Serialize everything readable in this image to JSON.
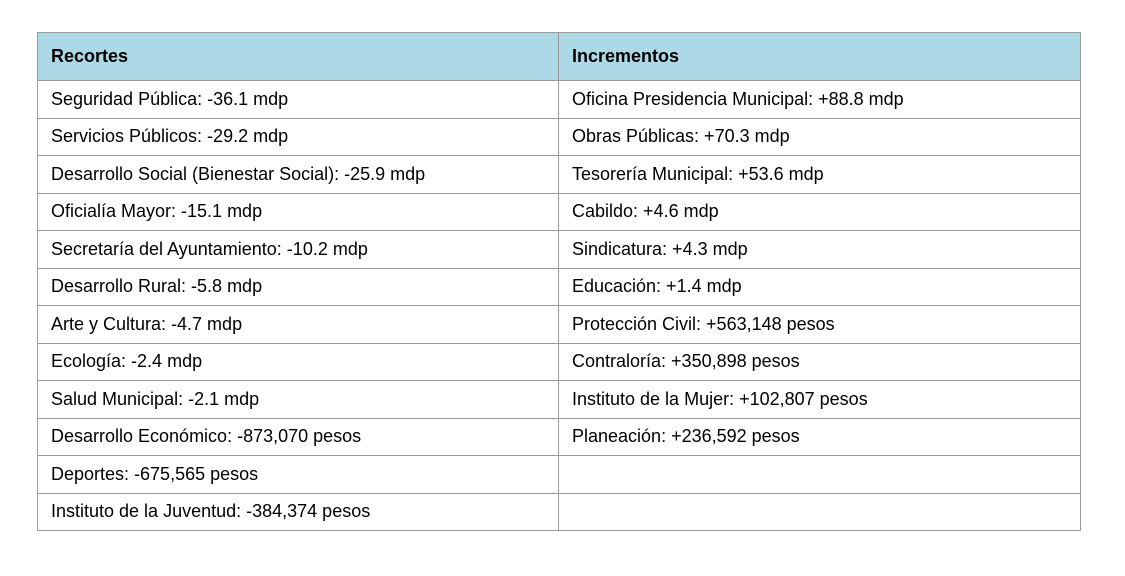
{
  "table": {
    "headers": [
      "Recortes",
      "Incrementos"
    ],
    "rows": [
      [
        "Seguridad Pública: -36.1 mdp",
        "Oficina Presidencia Municipal: +88.8 mdp"
      ],
      [
        "Servicios Públicos: -29.2 mdp",
        "Obras Públicas: +70.3 mdp"
      ],
      [
        "Desarrollo Social (Bienestar Social): -25.9 mdp",
        "Tesorería Municipal: +53.6 mdp"
      ],
      [
        "Oficialía Mayor: -15.1 mdp",
        "Cabildo: +4.6 mdp"
      ],
      [
        "Secretaría del Ayuntamiento: -10.2 mdp",
        "Sindicatura: +4.3 mdp"
      ],
      [
        "Desarrollo Rural: -5.8 mdp",
        "Educación: +1.4 mdp"
      ],
      [
        "Arte y Cultura: -4.7 mdp",
        "Protección Civil: +563,148 pesos"
      ],
      [
        "Ecología: -2.4 mdp",
        "Contraloría: +350,898 pesos"
      ],
      [
        "Salud Municipal: -2.1 mdp",
        "Instituto de la Mujer: +102,807 pesos"
      ],
      [
        "Desarrollo Económico: -873,070 pesos",
        "Planeación: +236,592 pesos"
      ],
      [
        "Deportes: -675,565 pesos",
        ""
      ],
      [
        "Instituto de la Juventud: -384,374 pesos",
        ""
      ]
    ]
  },
  "colors": {
    "header_bg": "#add8e6",
    "border": "#9a9a9a"
  }
}
